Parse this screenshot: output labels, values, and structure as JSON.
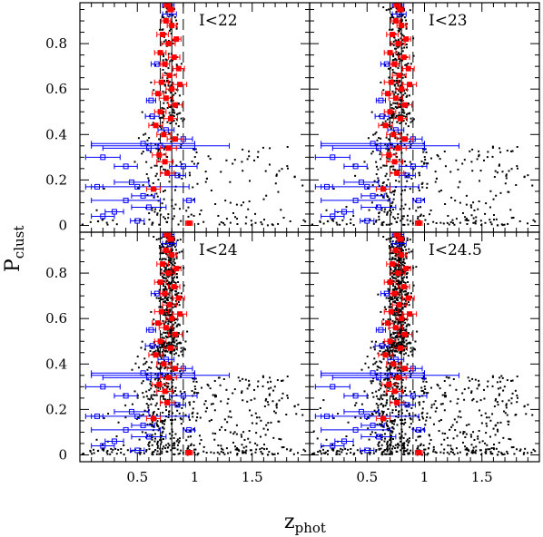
{
  "chart_data": {
    "type": "scatter",
    "xlabel": "z",
    "xlabel_subscript": "phot",
    "ylabel": "P",
    "ylabel_subscript": "clust",
    "xlim": [
      0,
      2
    ],
    "ylim": [
      -0.03,
      0.98
    ],
    "x_ticks": [
      0.5,
      1,
      1.5
    ],
    "x_tick_labels": [
      "0.5",
      "1",
      "1.5"
    ],
    "y_ticks": [
      0,
      0.2,
      0.4,
      0.6,
      0.8
    ],
    "y_tick_labels": [
      "0",
      "0.2",
      "0.4",
      "0.6",
      "0.8"
    ],
    "cluster_redshift": 0.8,
    "redshift_window": [
      0.7,
      0.9
    ],
    "colors": {
      "photometric": "#000000",
      "spec_member": "#ff0000",
      "spec_nonmember": "#0000ff"
    },
    "panels": [
      {
        "label": "I<22",
        "field_density": 0.28
      },
      {
        "label": "I<23",
        "field_density": 0.5
      },
      {
        "label": "I<24",
        "field_density": 0.8
      },
      {
        "label": "I<24.5",
        "field_density": 1.0
      }
    ],
    "spec_members": [
      {
        "z": 0.76,
        "p": 0.97,
        "err": 0.03
      },
      {
        "z": 0.79,
        "p": 0.95,
        "err": 0.03
      },
      {
        "z": 0.75,
        "p": 0.9,
        "err": 0.04
      },
      {
        "z": 0.8,
        "p": 0.88,
        "err": 0.04
      },
      {
        "z": 0.72,
        "p": 0.84,
        "err": 0.05
      },
      {
        "z": 0.84,
        "p": 0.82,
        "err": 0.04
      },
      {
        "z": 0.77,
        "p": 0.8,
        "err": 0.06
      },
      {
        "z": 0.7,
        "p": 0.76,
        "err": 0.05
      },
      {
        "z": 0.82,
        "p": 0.74,
        "err": 0.05
      },
      {
        "z": 0.74,
        "p": 0.71,
        "err": 0.04
      },
      {
        "z": 0.86,
        "p": 0.69,
        "err": 0.05
      },
      {
        "z": 0.78,
        "p": 0.66,
        "err": 0.06
      },
      {
        "z": 0.71,
        "p": 0.63,
        "err": 0.06
      },
      {
        "z": 0.87,
        "p": 0.62,
        "err": 0.06
      },
      {
        "z": 0.8,
        "p": 0.6,
        "err": 0.05
      },
      {
        "z": 0.68,
        "p": 0.58,
        "err": 0.05
      },
      {
        "z": 0.75,
        "p": 0.56,
        "err": 0.06
      },
      {
        "z": 0.83,
        "p": 0.53,
        "err": 0.06
      },
      {
        "z": 0.7,
        "p": 0.5,
        "err": 0.05
      },
      {
        "z": 0.79,
        "p": 0.47,
        "err": 0.06
      },
      {
        "z": 0.66,
        "p": 0.44,
        "err": 0.06
      },
      {
        "z": 0.73,
        "p": 0.4,
        "err": 0.06
      },
      {
        "z": 0.83,
        "p": 0.38,
        "err": 0.07
      },
      {
        "z": 0.77,
        "p": 0.34,
        "err": 0.07
      },
      {
        "z": 0.69,
        "p": 0.31,
        "err": 0.06
      },
      {
        "z": 0.74,
        "p": 0.28,
        "err": 0.07
      },
      {
        "z": 0.76,
        "p": 0.23,
        "err": 0.06
      },
      {
        "z": 0.64,
        "p": 0.16,
        "err": 0.06
      },
      {
        "z": 0.95,
        "p": 0.01,
        "err": 0.03
      }
    ],
    "spec_nonmembers": [
      {
        "z": 0.77,
        "p": 0.97,
        "err": 0.05
      },
      {
        "z": 0.78,
        "p": 0.93,
        "err": 0.06
      },
      {
        "z": 0.67,
        "p": 0.71,
        "err": 0.05
      },
      {
        "z": 0.62,
        "p": 0.55,
        "err": 0.04
      },
      {
        "z": 0.63,
        "p": 0.48,
        "err": 0.06
      },
      {
        "z": 0.75,
        "p": 0.42,
        "err": 0.07
      },
      {
        "z": 0.55,
        "p": 0.36,
        "err": 0.45
      },
      {
        "z": 0.6,
        "p": 0.34,
        "err": 0.4
      },
      {
        "z": 0.7,
        "p": 0.35,
        "err": 0.6
      },
      {
        "z": 0.9,
        "p": 0.38,
        "err": 0.08
      },
      {
        "z": 0.2,
        "p": 0.3,
        "err": 0.15
      },
      {
        "z": 0.4,
        "p": 0.26,
        "err": 0.1
      },
      {
        "z": 0.9,
        "p": 0.26,
        "err": 0.12
      },
      {
        "z": 0.85,
        "p": 0.22,
        "err": 0.07
      },
      {
        "z": 0.45,
        "p": 0.19,
        "err": 0.15
      },
      {
        "z": 0.15,
        "p": 0.17,
        "err": 0.05
      },
      {
        "z": 0.5,
        "p": 0.17,
        "err": 0.45
      },
      {
        "z": 0.55,
        "p": 0.13,
        "err": 0.1
      },
      {
        "z": 0.4,
        "p": 0.11,
        "err": 0.3
      },
      {
        "z": 0.95,
        "p": 0.11,
        "err": 0.05
      },
      {
        "z": 0.6,
        "p": 0.08,
        "err": 0.15
      },
      {
        "z": 0.3,
        "p": 0.06,
        "err": 0.08
      },
      {
        "z": 0.2,
        "p": 0.04,
        "err": 0.1
      },
      {
        "z": 0.5,
        "p": 0.02,
        "err": 0.06
      }
    ]
  }
}
